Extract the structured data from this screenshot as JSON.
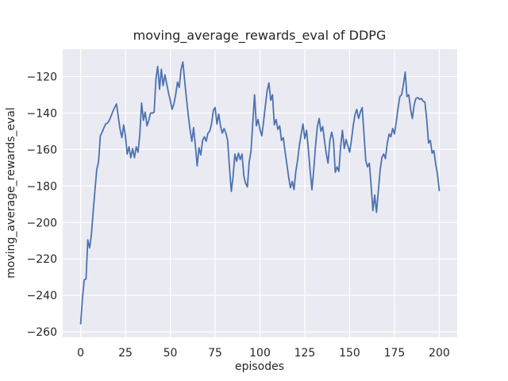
{
  "figure": {
    "title": "moving_average_rewards_eval of DDPG",
    "xlabel": "episodes",
    "ylabel": "moving_average_rewards_eval"
  },
  "chart_data": {
    "type": "line",
    "title": "moving_average_rewards_eval of DDPG",
    "xlabel": "episodes",
    "ylabel": "moving_average_rewards_eval",
    "legend": false,
    "grid": true,
    "style": "seaborn-darkgrid",
    "plot_bg": "#eaeaf2",
    "grid_color": "#ffffff",
    "text_color": "#262626",
    "line_color": "#4c72b0",
    "line_width": 1.8,
    "xlim": [
      -10,
      210
    ],
    "ylim": [
      -263,
      -105
    ],
    "x_ticks": [
      0,
      25,
      50,
      75,
      100,
      125,
      150,
      175,
      200
    ],
    "y_ticks": [
      -120,
      -140,
      -160,
      -180,
      -200,
      -220,
      -240,
      -260
    ],
    "x": [
      0,
      1,
      2,
      3,
      4,
      5,
      6,
      7,
      8,
      9,
      10,
      11,
      12,
      13,
      14,
      15,
      16,
      17,
      18,
      19,
      20,
      21,
      22,
      23,
      24,
      25,
      26,
      27,
      28,
      29,
      30,
      31,
      32,
      33,
      34,
      35,
      36,
      37,
      38,
      39,
      40,
      41,
      42,
      43,
      44,
      45,
      46,
      47,
      48,
      49,
      50,
      51,
      52,
      53,
      54,
      55,
      56,
      57,
      58,
      59,
      60,
      61,
      62,
      63,
      64,
      65,
      66,
      67,
      68,
      69,
      70,
      71,
      72,
      73,
      74,
      75,
      76,
      77,
      78,
      79,
      80,
      81,
      82,
      83,
      84,
      85,
      86,
      87,
      88,
      89,
      90,
      91,
      92,
      93,
      94,
      95,
      96,
      97,
      98,
      99,
      100,
      101,
      102,
      103,
      104,
      105,
      106,
      107,
      108,
      109,
      110,
      111,
      112,
      113,
      114,
      115,
      116,
      117,
      118,
      119,
      120,
      121,
      122,
      123,
      124,
      125,
      126,
      127,
      128,
      129,
      130,
      131,
      132,
      133,
      134,
      135,
      136,
      137,
      138,
      139,
      140,
      141,
      142,
      143,
      144,
      145,
      146,
      147,
      148,
      149,
      150,
      151,
      152,
      153,
      154,
      155,
      156,
      157,
      158,
      159,
      160,
      161,
      162,
      163,
      164,
      165,
      166,
      167,
      168,
      169,
      170,
      171,
      172,
      173,
      174,
      175,
      176,
      177,
      178,
      179,
      180,
      181,
      182,
      183,
      184,
      185,
      186,
      187,
      188,
      189,
      190,
      191,
      192,
      193,
      194,
      195,
      196,
      197,
      198,
      199,
      200
    ],
    "y": [
      -255.5,
      -242,
      -231.5,
      -231,
      -209.5,
      -214,
      -207,
      -194,
      -182,
      -171,
      -166.5,
      -152.5,
      -150.5,
      -148,
      -146,
      -145.5,
      -144,
      -141.5,
      -139,
      -137,
      -135,
      -142,
      -149,
      -153.5,
      -146.5,
      -153,
      -162.5,
      -158.5,
      -164.5,
      -159.5,
      -164.5,
      -158.5,
      -161.5,
      -152,
      -134.5,
      -144,
      -139.5,
      -147,
      -144,
      -140,
      -140,
      -139.5,
      -121,
      -114.5,
      -127,
      -116,
      -125,
      -119,
      -124,
      -129,
      -133,
      -138,
      -135,
      -130,
      -123,
      -126,
      -116,
      -112,
      -122,
      -132,
      -141,
      -149,
      -155.5,
      -148,
      -158,
      -169,
      -159,
      -163,
      -155,
      -153,
      -155.5,
      -151,
      -150,
      -146,
      -138.5,
      -137,
      -146,
      -140.5,
      -147,
      -151,
      -148.5,
      -151,
      -155,
      -170,
      -183,
      -175,
      -162.5,
      -166.5,
      -162,
      -165.5,
      -162.5,
      -174.5,
      -178.5,
      -180.5,
      -167,
      -161,
      -145,
      -130,
      -147,
      -143.5,
      -149,
      -152.5,
      -145,
      -136,
      -128,
      -123.5,
      -133,
      -130,
      -146.5,
      -143.5,
      -149,
      -147,
      -155,
      -153.5,
      -161,
      -168,
      -175,
      -181,
      -177.5,
      -182,
      -172,
      -166,
      -157.5,
      -151.5,
      -146,
      -154,
      -149.5,
      -160,
      -172,
      -182,
      -171,
      -158,
      -147.5,
      -143,
      -150,
      -147.5,
      -155,
      -162.5,
      -167.5,
      -155,
      -150.5,
      -155,
      -172.5,
      -169.5,
      -172,
      -158,
      -149.5,
      -159.5,
      -154.5,
      -158,
      -161.5,
      -155,
      -147,
      -141,
      -138,
      -143,
      -139.5,
      -137,
      -151,
      -166,
      -169.5,
      -167.5,
      -180,
      -193.5,
      -185,
      -194.5,
      -183,
      -171.5,
      -164.5,
      -162.5,
      -165,
      -156.5,
      -151.5,
      -153,
      -148.5,
      -151.5,
      -145,
      -137.5,
      -131,
      -130,
      -124.5,
      -117.5,
      -131,
      -130,
      -138,
      -143,
      -135.5,
      -132,
      -131.5,
      -132.5,
      -132,
      -133.5,
      -134,
      -143.5,
      -156.5,
      -155,
      -162,
      -160.5,
      -168,
      -173.5,
      -182.5
    ]
  }
}
